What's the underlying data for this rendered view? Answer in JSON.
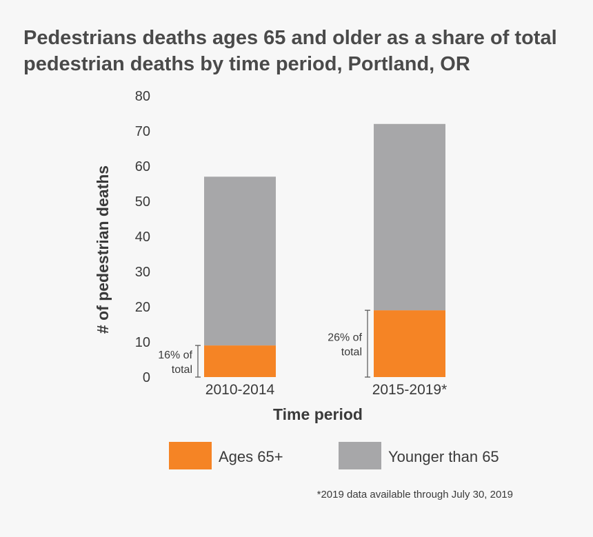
{
  "colors": {
    "ages_65": "#f58425",
    "younger": "#a7a7a9",
    "bracket": "#555555"
  },
  "chart_data": {
    "type": "bar",
    "stacked": true,
    "title": "Pedestrians deaths ages 65 and older as a share of total pedestrian deaths by time period, Portland, OR",
    "xlabel": "Time period",
    "ylabel": "# of pedestrian deaths",
    "ylim": [
      0,
      80
    ],
    "yticks": [
      "0",
      "10",
      "20",
      "30",
      "40",
      "50",
      "60",
      "70",
      "80"
    ],
    "categories": [
      "2010-2014",
      "2015-2019*"
    ],
    "series": [
      {
        "name": "Ages 65+",
        "values": [
          9,
          19
        ]
      },
      {
        "name": "Younger than 65",
        "values": [
          48,
          53
        ]
      }
    ],
    "annotations": [
      {
        "line1": "16% of",
        "line2": "total"
      },
      {
        "line1": "26% of",
        "line2": "total"
      }
    ],
    "grid": false,
    "legend": "bottom",
    "footnote": "*2019 data available through July 30, 2019"
  }
}
